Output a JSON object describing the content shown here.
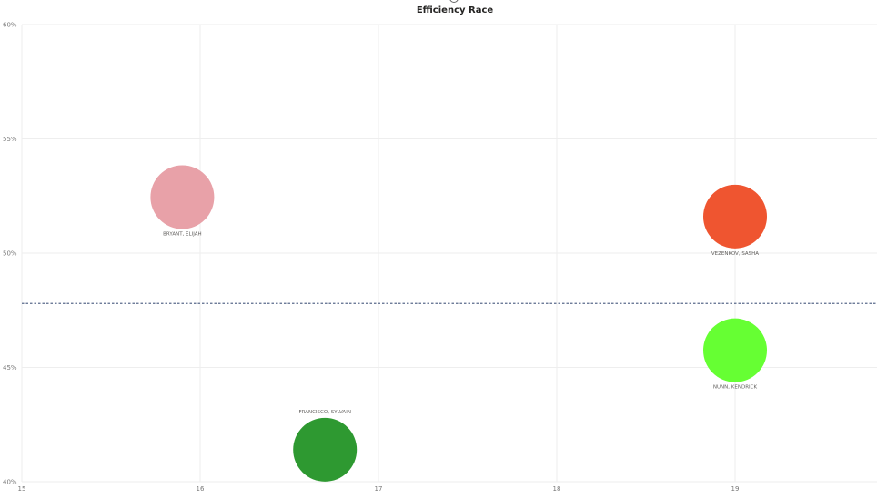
{
  "chart_data": {
    "type": "scatter",
    "title": "Efficiency Race",
    "xlabel": "",
    "ylabel": "",
    "xlim": [
      15,
      19.8
    ],
    "ylim": [
      40,
      60
    ],
    "x_ticks": [
      "15",
      "16",
      "17",
      "18",
      "19"
    ],
    "x_tick_values": [
      15,
      16,
      17,
      18,
      19
    ],
    "y_ticks": [
      "40%",
      "45%",
      "50%",
      "55%",
      "60%"
    ],
    "y_tick_values": [
      40,
      45,
      50,
      55,
      60
    ],
    "grid": true,
    "reference_line": {
      "y": 47.8,
      "style": "dashed",
      "color": "#5b6b8c"
    },
    "points": [
      {
        "label": "BRYANT, ELIJAH",
        "x": 15.9,
        "y": 52.45,
        "color": "#e8a1a8",
        "label_pos": "below"
      },
      {
        "label": "VEZENKOV, SASHA",
        "x": 19.0,
        "y": 51.6,
        "color": "#ef5530",
        "label_pos": "below"
      },
      {
        "label": "NUNN, KENDRICK",
        "x": 19.0,
        "y": 45.75,
        "color": "#66ff33",
        "label_pos": "below"
      },
      {
        "label": "FRANCISCO, SYLVAIN",
        "x": 16.7,
        "y": 41.4,
        "color": "#2e9931",
        "label_pos": "above"
      }
    ]
  }
}
